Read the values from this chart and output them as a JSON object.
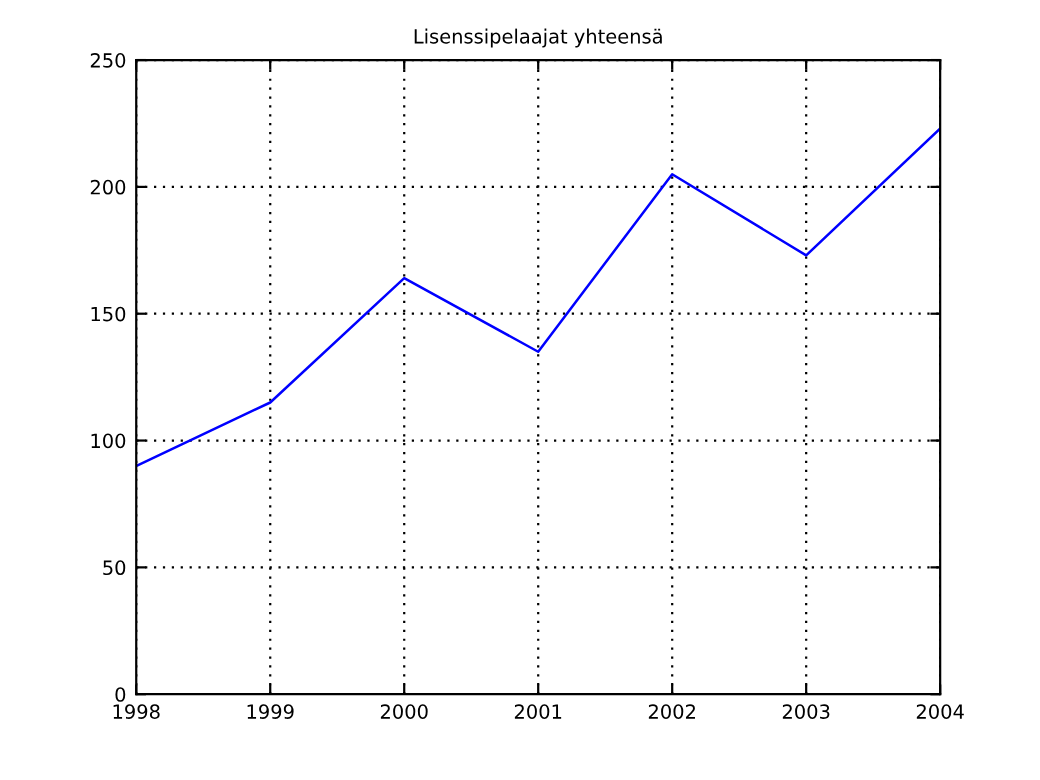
{
  "chart_data": {
    "type": "line",
    "title": "Lisenssipelaajat yhteensä",
    "x": [
      1998,
      1999,
      2000,
      2001,
      2002,
      2003,
      2004
    ],
    "series": [
      {
        "color": "#0000ff",
        "values": [
          90,
          115,
          164,
          135,
          205,
          173,
          223
        ]
      }
    ],
    "xlim": [
      1998,
      2004
    ],
    "xticks": [
      1998,
      1999,
      2000,
      2001,
      2002,
      2003,
      2004
    ],
    "ylim": [
      0,
      250
    ],
    "yticks": [
      0,
      50,
      100,
      150,
      200,
      250
    ],
    "grid": true,
    "line_style": "solid",
    "marker": "none"
  }
}
